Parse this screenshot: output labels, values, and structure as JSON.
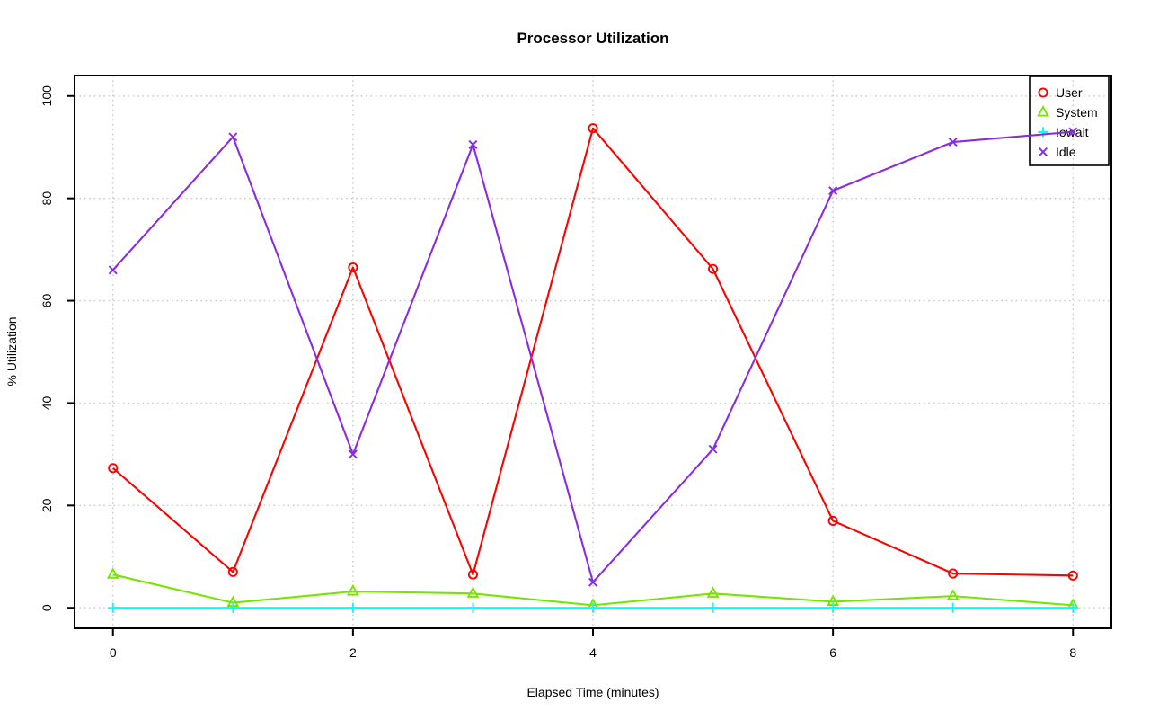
{
  "chart_data": {
    "type": "line",
    "title": "Processor Utilization",
    "xlabel": "Elapsed Time (minutes)",
    "ylabel": "% Utilization",
    "x": [
      0,
      1,
      2,
      3,
      4,
      5,
      6,
      7,
      8
    ],
    "series": [
      {
        "name": "User",
        "marker": "circle",
        "color": "#ff0000",
        "values": [
          27.3,
          7.0,
          66.5,
          6.5,
          93.7,
          66.2,
          17.0,
          6.7,
          6.3
        ]
      },
      {
        "name": "System",
        "marker": "triangle",
        "color": "#76e600",
        "values": [
          6.5,
          1.0,
          3.2,
          2.8,
          0.5,
          2.8,
          1.2,
          2.3,
          0.5
        ]
      },
      {
        "name": "Iowait",
        "marker": "plus",
        "color": "#00ffff",
        "values": [
          0,
          0,
          0,
          0,
          0,
          0,
          0,
          0,
          0
        ]
      },
      {
        "name": "Idle",
        "marker": "x",
        "color": "#8a2be2",
        "values": [
          66.0,
          92.0,
          30.0,
          90.5,
          5.0,
          31.0,
          81.5,
          91.0,
          93.0
        ]
      }
    ],
    "xticks": [
      "0",
      "2",
      "4",
      "6",
      "8"
    ],
    "xtick_values": [
      0,
      2,
      4,
      6,
      8
    ],
    "yticks": [
      "0",
      "20",
      "40",
      "60",
      "80",
      "100"
    ],
    "ytick_values": [
      0,
      20,
      40,
      60,
      80,
      100
    ],
    "xlim": [
      -0.32,
      8.32
    ],
    "ylim": [
      -4,
      104
    ],
    "grid": true,
    "legend_position": "top-right",
    "legend_labels": [
      "User",
      "System",
      "Iowait",
      "Idle"
    ]
  },
  "colors": {
    "axis": "#000000",
    "grid": "#c9c9c9",
    "background": "#ffffff",
    "user": "#ff0000",
    "system": "#76e600",
    "iowait": "#00ffff",
    "idle": "#8a2be2"
  }
}
